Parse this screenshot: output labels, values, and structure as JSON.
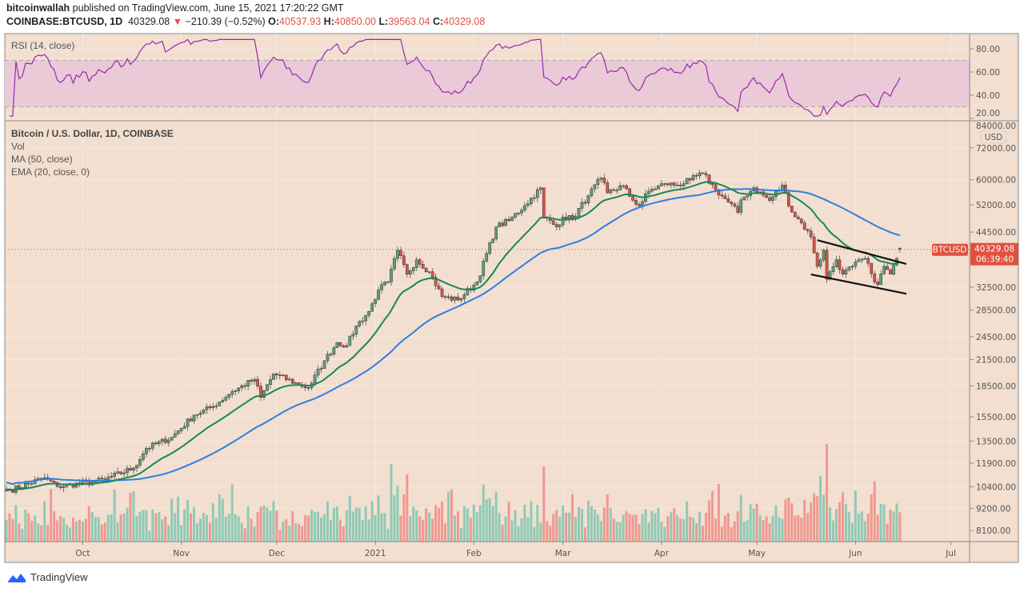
{
  "header": {
    "publisher": "bitcoinwallah",
    "published_text": "published on TradingView.com, June 15, 2021 17:20:22 GMT",
    "symbol": "COINBASE:BTCUSD, 1D",
    "last": "40329.08",
    "change": "−210.39 (−0.52%)",
    "o_label": "O:",
    "o": "40537.93",
    "h_label": "H:",
    "h": "40850.00",
    "l_label": "L:",
    "l": "39563.04",
    "c_label": "C:",
    "c": "40329.08"
  },
  "footer": {
    "brand": "TradingView"
  },
  "colors": {
    "bg": "#f2dfd0",
    "up": "#5f9f7f",
    "down": "#d9534a",
    "vol_up": "#8fcab6",
    "vol_down": "#f09890",
    "ma": "#2e7fe0",
    "ema": "#17875a",
    "rsi": "#9c27b0",
    "rsi_band": "#e9cad6",
    "tag": "#e0513f"
  },
  "chart_data": {
    "type": "candlestick",
    "title": "Bitcoin / U.S. Dollar, 1D, COINBASE",
    "indicators": {
      "vol": "Vol",
      "ma": "MA (50, close)",
      "ema": "EMA (20, close, 0)",
      "rsi": "RSI (14, close)"
    },
    "x_start": "2020-09-07",
    "x_end": "2021-06-15",
    "x_ticks": [
      {
        "label": "Oct",
        "day": 24
      },
      {
        "label": "Nov",
        "day": 55
      },
      {
        "label": "Dec",
        "day": 85
      },
      {
        "label": "2021",
        "day": 116
      },
      {
        "label": "Feb",
        "day": 147
      },
      {
        "label": "Mar",
        "day": 175
      },
      {
        "label": "Apr",
        "day": 206
      },
      {
        "label": "May",
        "day": 236
      },
      {
        "label": "Jun",
        "day": 267
      },
      {
        "label": "Jul",
        "day": 297
      }
    ],
    "y_scale": "log",
    "y_unit": "USD",
    "y_range": [
      7600,
      84000
    ],
    "y_ticks": [
      "84000.00",
      "72000.00",
      "60000.00",
      "52000.00",
      "44500.00",
      "32500.00",
      "28500.00",
      "24500.00",
      "21500.00",
      "18500.00",
      "15500.00",
      "13500.00",
      "11900.00",
      "10400.00",
      "9200.00",
      "8100.00"
    ],
    "rsi_ticks": [
      "80.00",
      "60.00",
      "40.00",
      "20.00"
    ],
    "rsi_band": [
      30,
      70
    ],
    "close_anchors": [
      [
        0,
        10250
      ],
      [
        1,
        10180
      ],
      [
        12,
        10960
      ],
      [
        16,
        10420
      ],
      [
        27,
        10680
      ],
      [
        31,
        10850
      ],
      [
        40,
        11580
      ],
      [
        44,
        12950
      ],
      [
        52,
        13800
      ],
      [
        59,
        15660
      ],
      [
        65,
        16460
      ],
      [
        71,
        17910
      ],
      [
        78,
        19210
      ],
      [
        80,
        17330
      ],
      [
        84,
        19830
      ],
      [
        92,
        18640
      ],
      [
        95,
        18300
      ],
      [
        100,
        21360
      ],
      [
        104,
        23700
      ],
      [
        107,
        23280
      ],
      [
        110,
        26040
      ],
      [
        114,
        28300
      ],
      [
        117,
        32000
      ],
      [
        120,
        33500
      ],
      [
        123,
        40100
      ],
      [
        126,
        35000
      ],
      [
        129,
        38000
      ],
      [
        133,
        35500
      ],
      [
        137,
        30800
      ],
      [
        142,
        30200
      ],
      [
        148,
        33500
      ],
      [
        154,
        45850
      ],
      [
        158,
        47500
      ],
      [
        163,
        51800
      ],
      [
        168,
        57300
      ],
      [
        169,
        48500
      ],
      [
        173,
        45850
      ],
      [
        175,
        48500
      ],
      [
        178,
        48100
      ],
      [
        183,
        54800
      ],
      [
        187,
        60600
      ],
      [
        189,
        55700
      ],
      [
        194,
        58000
      ],
      [
        196,
        54500
      ],
      [
        199,
        51700
      ],
      [
        202,
        56200
      ],
      [
        207,
        58700
      ],
      [
        211,
        58200
      ],
      [
        215,
        59900
      ],
      [
        219,
        62200
      ],
      [
        223,
        56700
      ],
      [
        227,
        52800
      ],
      [
        230,
        49800
      ],
      [
        231,
        53500
      ],
      [
        235,
        57300
      ],
      [
        240,
        53300
      ],
      [
        244,
        58200
      ],
      [
        247,
        49900
      ],
      [
        250,
        46900
      ],
      [
        253,
        43300
      ],
      [
        255,
        36600
      ],
      [
        257,
        40100
      ],
      [
        258,
        34000
      ],
      [
        261,
        38000
      ],
      [
        263,
        35000
      ],
      [
        266,
        36600
      ],
      [
        270,
        38300
      ],
      [
        272,
        35100
      ],
      [
        274,
        33000
      ],
      [
        276,
        36600
      ],
      [
        278,
        35000
      ],
      [
        280,
        38300
      ],
      [
        281,
        40329.08
      ]
    ],
    "last_candle": {
      "open": 40537.93,
      "high": 40850.0,
      "low": 39563.04,
      "close": 40329.08
    },
    "last_price_tag": {
      "symbol": "BTCUSD",
      "price": "40329.08",
      "countdown": "06:39:40"
    },
    "trendlines": [
      {
        "name": "channel-upper",
        "from": [
          255,
          42500
        ],
        "to": [
          283,
          37100
        ]
      },
      {
        "name": "channel-lower",
        "from": [
          253,
          34950
        ],
        "to": [
          283,
          31300
        ]
      }
    ]
  }
}
